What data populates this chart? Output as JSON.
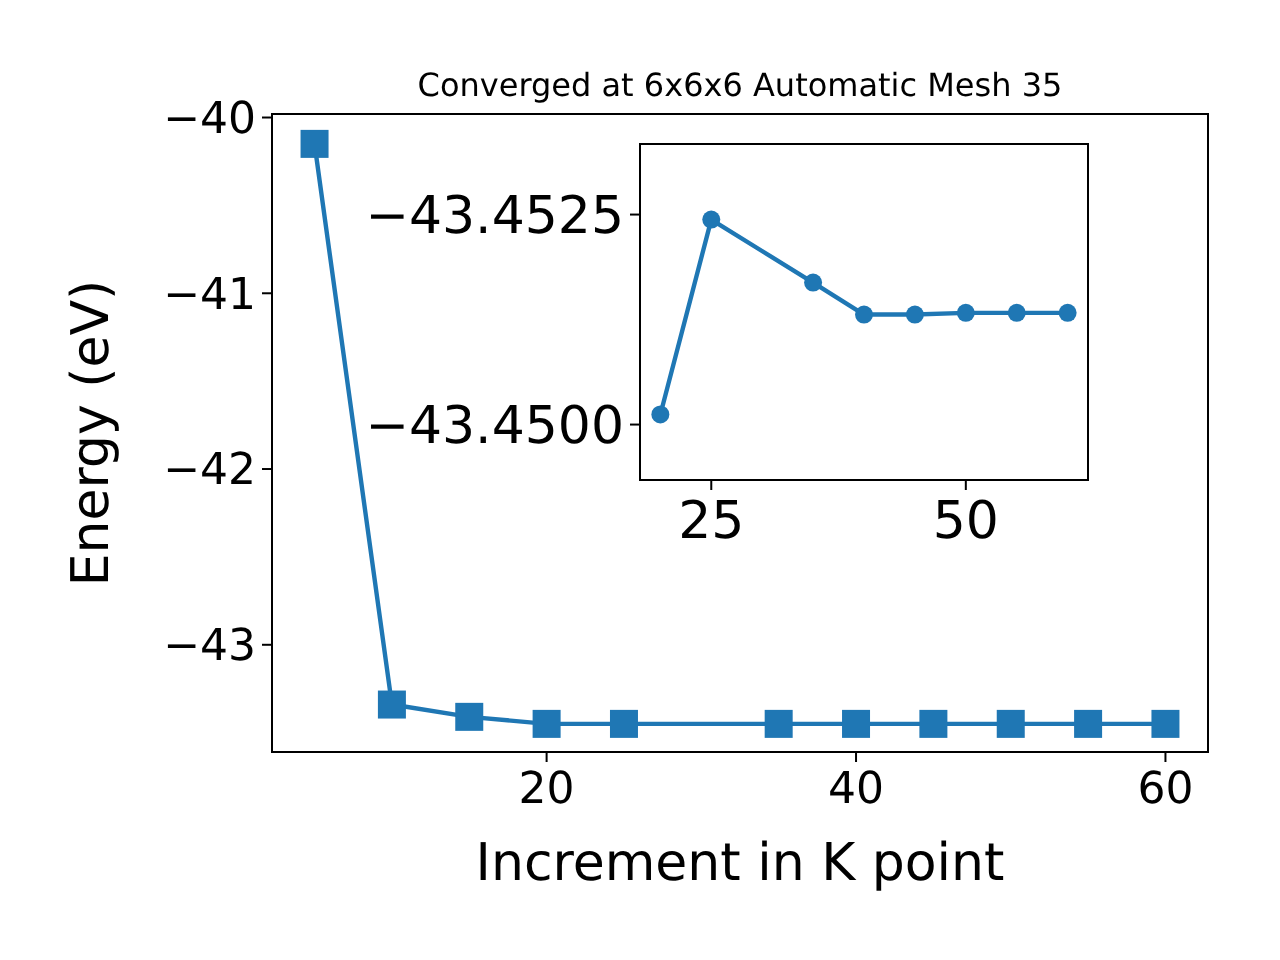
{
  "chart_data": [
    {
      "type": "line",
      "title": "Converged at 6x6x6 Automatic Mesh 35",
      "xlabel": "Increment in K point",
      "ylabel": "Energy (eV)",
      "x": [
        5,
        10,
        15,
        20,
        25,
        35,
        40,
        45,
        50,
        55,
        60
      ],
      "series": [
        {
          "color": "#1f77b4",
          "values": [
            -40.15,
            -43.34,
            -43.41,
            -43.45,
            -43.45,
            -43.45,
            -43.45,
            -43.45,
            -43.45,
            -43.45,
            -43.45
          ]
        }
      ],
      "xlim": [
        2.25,
        62.75
      ],
      "ylim": [
        -43.61,
        -39.98
      ],
      "xticks": [
        20,
        40,
        60
      ],
      "yticks": [
        -43,
        -42,
        -41,
        -40
      ],
      "marker": "square",
      "line_style": "solid"
    },
    {
      "type": "line",
      "x": [
        20,
        25,
        35,
        40,
        45,
        50,
        55,
        60
      ],
      "series": [
        {
          "color": "#1f77b4",
          "values": [
            -43.45012,
            -43.45244,
            -43.45169,
            -43.45131,
            -43.45131,
            -43.45133,
            -43.45133,
            -43.45133
          ]
        }
      ],
      "xlim": [
        18,
        62
      ],
      "ylim": [
        -43.44934,
        -43.45334
      ],
      "xticks": [
        25,
        50
      ],
      "yticks": [
        {
          "value": -43.45,
          "label": "−43.4500"
        },
        {
          "value": -43.4525,
          "label": "−43.4525"
        }
      ],
      "marker": "circle",
      "line_style": "solid"
    }
  ]
}
